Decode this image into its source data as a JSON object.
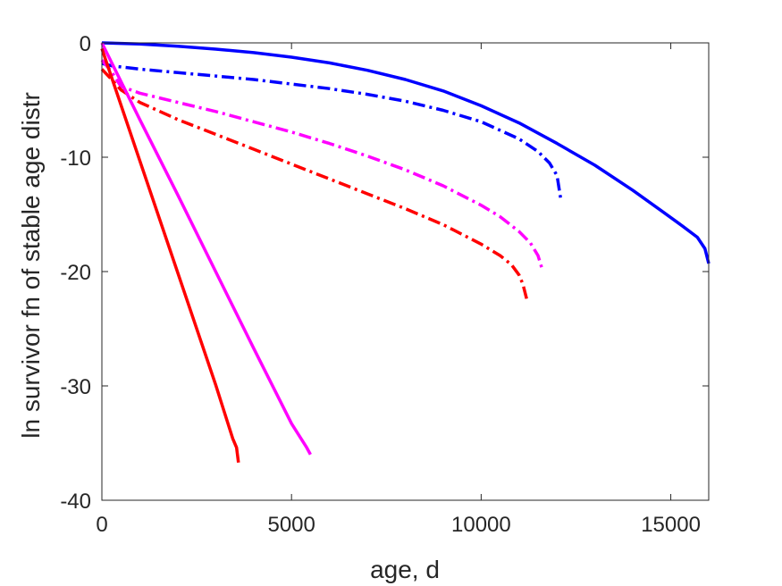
{
  "chart_data": {
    "type": "line",
    "title": "",
    "xlabel": "age, d",
    "ylabel": "ln survivor fn of stable age distr",
    "xlim": [
      0,
      16000
    ],
    "ylim": [
      -40,
      0
    ],
    "xticks": [
      0,
      5000,
      10000,
      15000
    ],
    "yticks": [
      0,
      -10,
      -20,
      -30,
      -40
    ],
    "xtick_labels": [
      "0",
      "5000",
      "10000",
      "15000"
    ],
    "ytick_labels": [
      "0",
      "-10",
      "-20",
      "-30",
      "-40"
    ],
    "grid": false,
    "legend": "none",
    "series": [
      {
        "color": "#0000ff",
        "dash": "solid",
        "x": [
          0,
          1000,
          2000,
          3000,
          4000,
          5000,
          6000,
          7000,
          8000,
          9000,
          10000,
          11000,
          12000,
          13000,
          14000,
          14800,
          15300,
          15700,
          15900,
          16000
        ],
        "y": [
          0,
          -0.1,
          -0.3,
          -0.55,
          -0.85,
          -1.25,
          -1.75,
          -2.4,
          -3.2,
          -4.2,
          -5.5,
          -7.0,
          -8.8,
          -10.7,
          -12.9,
          -14.8,
          -16.0,
          -17.0,
          -18.0,
          -19.3
        ]
      },
      {
        "color": "#0000ff",
        "dash": "dashdot",
        "x": [
          0,
          250,
          500,
          1000,
          2000,
          3000,
          4000,
          5000,
          6000,
          7000,
          8000,
          9000,
          10000,
          11000,
          11500,
          11800,
          12000,
          12100
        ],
        "y": [
          -1.8,
          -2.0,
          -2.1,
          -2.3,
          -2.6,
          -2.9,
          -3.2,
          -3.6,
          -4.0,
          -4.5,
          -5.1,
          -5.9,
          -6.9,
          -8.4,
          -9.5,
          -10.5,
          -11.6,
          -13.7
        ]
      },
      {
        "color": "#ff00ff",
        "dash": "dashdot",
        "x": [
          0,
          250,
          500,
          1000,
          2000,
          3000,
          4000,
          5000,
          6000,
          7000,
          8000,
          9000,
          10000,
          10500,
          11000,
          11300,
          11500,
          11600
        ],
        "y": [
          -1.5,
          -2.5,
          -3.8,
          -4.4,
          -5.2,
          -6.0,
          -6.9,
          -7.8,
          -8.8,
          -9.9,
          -11.1,
          -12.5,
          -14.2,
          -15.2,
          -16.5,
          -17.5,
          -18.6,
          -19.7
        ]
      },
      {
        "color": "#ff0000",
        "dash": "dashdot",
        "x": [
          0,
          200,
          500,
          1000,
          2000,
          3000,
          4000,
          5000,
          6000,
          7000,
          8000,
          9000,
          10000,
          10500,
          10800,
          11000,
          11100,
          11200
        ],
        "y": [
          -2.3,
          -3.0,
          -4.1,
          -5.2,
          -6.7,
          -8.0,
          -9.3,
          -10.6,
          -11.9,
          -13.2,
          -14.5,
          -15.9,
          -17.6,
          -18.6,
          -19.4,
          -20.3,
          -21.1,
          -22.4
        ]
      },
      {
        "color": "#ff00ff",
        "dash": "solid",
        "x": [
          0,
          1000,
          2000,
          3000,
          4000,
          5000,
          5400,
          5500
        ],
        "y": [
          0,
          -6.7,
          -13.3,
          -20.0,
          -26.7,
          -33.3,
          -35.4,
          -36.0
        ]
      },
      {
        "color": "#ff0000",
        "dash": "solid",
        "x": [
          0,
          1000,
          2000,
          3000,
          3450,
          3550,
          3600
        ],
        "y": [
          -0.5,
          -10.3,
          -20.1,
          -29.9,
          -34.6,
          -35.4,
          -36.7
        ]
      }
    ]
  }
}
